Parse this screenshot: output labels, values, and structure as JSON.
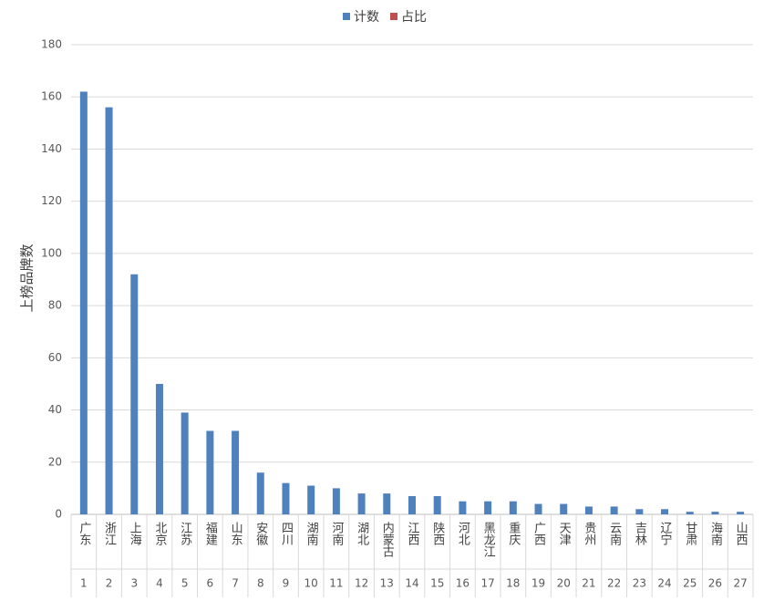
{
  "chart_data": {
    "type": "bar",
    "y_label": "上榜品牌数",
    "categories": [
      "广东",
      "浙江",
      "上海",
      "北京",
      "江苏",
      "福建",
      "山东",
      "安徽",
      "四川",
      "湖南",
      "河南",
      "湖北",
      "内蒙古",
      "江西",
      "陕西",
      "河北",
      "黑龙江",
      "重庆",
      "广西",
      "天津",
      "贵州",
      "云南",
      "吉林",
      "辽宁",
      "甘肃",
      "海南",
      "山西"
    ],
    "ranks": [
      1,
      2,
      3,
      4,
      5,
      6,
      7,
      8,
      9,
      10,
      11,
      12,
      13,
      14,
      15,
      16,
      17,
      18,
      19,
      20,
      21,
      22,
      23,
      24,
      25,
      26,
      27
    ],
    "series": [
      {
        "name": "计数",
        "color": "#4f81bd",
        "values": [
          162,
          156,
          92,
          50,
          39,
          32,
          32,
          16,
          12,
          11,
          10,
          8,
          8,
          7,
          7,
          5,
          5,
          5,
          4,
          4,
          3,
          3,
          2,
          2,
          1,
          1,
          1
        ]
      },
      {
        "name": "占比",
        "color": "#c0504d",
        "values": [
          null,
          null,
          null,
          null,
          null,
          null,
          null,
          null,
          null,
          null,
          null,
          null,
          null,
          null,
          null,
          null,
          null,
          null,
          null,
          null,
          null,
          null,
          null,
          null,
          null,
          null,
          null
        ]
      }
    ],
    "ylim": [
      0,
      180
    ],
    "yticks": [
      0,
      20,
      40,
      60,
      80,
      100,
      120,
      140,
      160,
      180
    ],
    "grid": true
  }
}
